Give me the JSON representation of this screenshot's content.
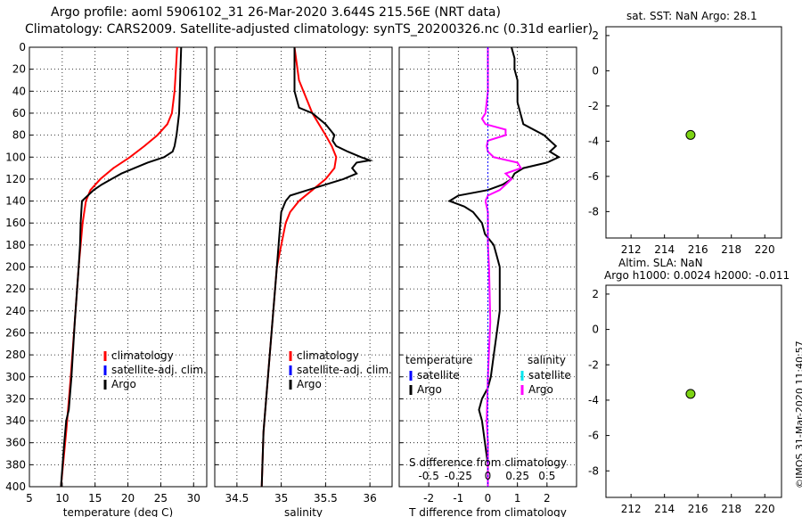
{
  "titles": {
    "line1": "Argo profile: aoml 5906102_31 26-Mar-2020 3.644S 215.56E (NRT data)",
    "line2": "Climatology: CARS2009. Satellite-adjusted climatology: synTS_20200326.nc (0.31d earlier)",
    "sst": "sat. SST: NaN Argo: 28.1",
    "sla1": "Altim. SLA: NaN",
    "sla2": "Argo h1000: 0.0024 h2000: -0.011",
    "credit": "©IMOS 31-Mar-2020 11:40:57"
  },
  "colors": {
    "climatology": "#ff0000",
    "satellite": "#0000ff",
    "argo": "#000000",
    "sat_salinity": "#00e5ee",
    "argo_salinity": "#ff00ff",
    "marker": "#7cd313",
    "grid": "#000000"
  },
  "chart_data": [
    {
      "id": "temperature",
      "type": "line",
      "xlabel": "temperature (deg C)",
      "ylabel": "",
      "xlim": [
        5,
        32
      ],
      "ylim": [
        400,
        0
      ],
      "xticks": [
        5,
        10,
        15,
        20,
        25,
        30
      ],
      "yticks": [
        0,
        20,
        40,
        60,
        80,
        100,
        120,
        140,
        160,
        180,
        200,
        220,
        240,
        260,
        280,
        300,
        320,
        340,
        360,
        380,
        400
      ],
      "grid": true,
      "legend": {
        "position": "bottom-right",
        "entries": [
          "climatology",
          "satellite-adj. clim.",
          "Argo"
        ]
      },
      "series": [
        {
          "name": "climatology",
          "color": "#ff0000",
          "depth": [
            0,
            20,
            40,
            60,
            70,
            80,
            90,
            100,
            110,
            120,
            130,
            140,
            160,
            180,
            200,
            250,
            300,
            350,
            400
          ],
          "values": [
            27.5,
            27.3,
            27.1,
            26.7,
            26.0,
            24.5,
            22.5,
            20.3,
            17.8,
            15.8,
            14.3,
            13.6,
            13.1,
            12.8,
            12.5,
            11.9,
            11.3,
            10.6,
            9.8
          ]
        },
        {
          "name": "Argo",
          "color": "#000000",
          "depth": [
            0,
            20,
            40,
            60,
            70,
            80,
            90,
            95,
            100,
            105,
            110,
            115,
            120,
            125,
            130,
            140,
            150,
            160,
            180,
            200,
            250,
            300,
            330,
            340,
            360,
            400
          ],
          "values": [
            28.1,
            28.0,
            27.9,
            27.8,
            27.6,
            27.4,
            27.1,
            26.8,
            25.5,
            23.0,
            21.0,
            19.0,
            17.5,
            16.0,
            14.8,
            13.0,
            12.9,
            12.8,
            12.7,
            12.5,
            11.9,
            11.4,
            11.0,
            10.6,
            10.3,
            9.8
          ]
        }
      ]
    },
    {
      "id": "salinity",
      "type": "line",
      "xlabel": "salinity",
      "xlim": [
        34.25,
        36.25
      ],
      "ylim": [
        400,
        0
      ],
      "xticks": [
        34.5,
        35,
        35.5,
        36
      ],
      "grid": true,
      "legend": {
        "position": "bottom-right",
        "entries": [
          "climatology",
          "satellite-adj. clim.",
          "Argo"
        ]
      },
      "series": [
        {
          "name": "climatology",
          "color": "#ff0000",
          "depth": [
            0,
            30,
            60,
            80,
            90,
            100,
            110,
            120,
            130,
            140,
            150,
            160,
            180,
            200,
            250,
            300,
            350,
            400
          ],
          "values": [
            35.15,
            35.2,
            35.35,
            35.5,
            35.57,
            35.62,
            35.6,
            35.5,
            35.35,
            35.2,
            35.1,
            35.05,
            35.0,
            34.95,
            34.9,
            34.85,
            34.8,
            34.78
          ]
        },
        {
          "name": "Argo",
          "color": "#000000",
          "depth": [
            0,
            20,
            40,
            55,
            60,
            70,
            75,
            80,
            85,
            90,
            95,
            100,
            103,
            105,
            110,
            115,
            120,
            125,
            130,
            135,
            140,
            150,
            170,
            200,
            250,
            300,
            350,
            400
          ],
          "values": [
            35.15,
            35.15,
            35.15,
            35.2,
            35.35,
            35.5,
            35.55,
            35.6,
            35.58,
            35.62,
            35.75,
            35.9,
            36.0,
            35.85,
            35.8,
            35.85,
            35.7,
            35.5,
            35.3,
            35.1,
            35.05,
            35.0,
            34.98,
            34.95,
            34.9,
            34.85,
            34.8,
            34.78
          ]
        }
      ]
    },
    {
      "id": "difference",
      "type": "line",
      "xlabel": "T difference from climatology",
      "x2label": "S difference from climatology",
      "xlim": [
        -3,
        3
      ],
      "x2lim": [
        -0.75,
        0.75
      ],
      "ylim": [
        400,
        0
      ],
      "xticks": [
        -2,
        -1,
        0,
        1,
        2
      ],
      "x2ticks": [
        "-0.5",
        "-0.25",
        "0",
        "0.25",
        "0.5"
      ],
      "grid": true,
      "legend_left": {
        "title": "temperature",
        "entries": [
          "satellite",
          "Argo"
        ]
      },
      "legend_right": {
        "title": "salinity",
        "entries": [
          "satellite",
          "Argo"
        ]
      },
      "series": [
        {
          "name": "temperature Argo",
          "color": "#000000",
          "depth": [
            0,
            10,
            20,
            30,
            40,
            50,
            60,
            70,
            80,
            90,
            95,
            100,
            105,
            110,
            115,
            120,
            125,
            130,
            135,
            140,
            145,
            150,
            160,
            170,
            180,
            190,
            200,
            220,
            240,
            260,
            280,
            300,
            310,
            320,
            330,
            340,
            360,
            380,
            400
          ],
          "values": [
            0.8,
            0.9,
            0.9,
            1.0,
            1.0,
            1.0,
            1.1,
            1.2,
            1.9,
            2.3,
            2.1,
            2.4,
            2.0,
            1.2,
            0.9,
            0.8,
            0.5,
            0.0,
            -1.0,
            -1.3,
            -0.8,
            -0.5,
            -0.2,
            -0.1,
            0.2,
            0.3,
            0.4,
            0.4,
            0.4,
            0.3,
            0.2,
            0.1,
            0.0,
            -0.2,
            -0.3,
            -0.2,
            -0.1,
            0.0,
            0.0
          ]
        },
        {
          "name": "salinity Argo",
          "color": "#ff00ff",
          "depth": [
            0,
            20,
            40,
            60,
            65,
            70,
            75,
            80,
            85,
            90,
            95,
            100,
            105,
            110,
            115,
            120,
            125,
            130,
            135,
            140,
            150,
            180,
            200,
            250,
            300,
            340,
            360,
            400
          ],
          "values": [
            0.0,
            0.0,
            0.0,
            -0.02,
            -0.05,
            -0.02,
            0.15,
            0.15,
            0.0,
            -0.01,
            0.0,
            0.05,
            0.25,
            0.28,
            0.15,
            0.2,
            0.15,
            0.1,
            0.0,
            -0.02,
            0.0,
            0.0,
            0.01,
            0.02,
            0.0,
            -0.01,
            0.0,
            0.0
          ]
        }
      ]
    },
    {
      "id": "sst",
      "type": "scatter",
      "xlim": [
        210.5,
        221
      ],
      "ylim": [
        -9.5,
        2.5
      ],
      "xticks": [
        212,
        214,
        216,
        218,
        220
      ],
      "yticks": [
        2,
        0,
        -2,
        -4,
        -6,
        -8
      ],
      "points": [
        {
          "x": 215.56,
          "y": -3.644
        }
      ]
    },
    {
      "id": "sla",
      "type": "scatter",
      "xlim": [
        210.5,
        221
      ],
      "ylim": [
        -9.5,
        2.5
      ],
      "xticks": [
        212,
        214,
        216,
        218,
        220
      ],
      "yticks": [
        2,
        0,
        -2,
        -4,
        -6,
        -8
      ],
      "points": [
        {
          "x": 215.56,
          "y": -3.644
        }
      ]
    }
  ],
  "legend_labels": {
    "climatology": "climatology",
    "satadj": "satellite-adj. clim.",
    "argo": "Argo",
    "temperature": "temperature",
    "salinity": "salinity",
    "satellite": "satellite"
  }
}
